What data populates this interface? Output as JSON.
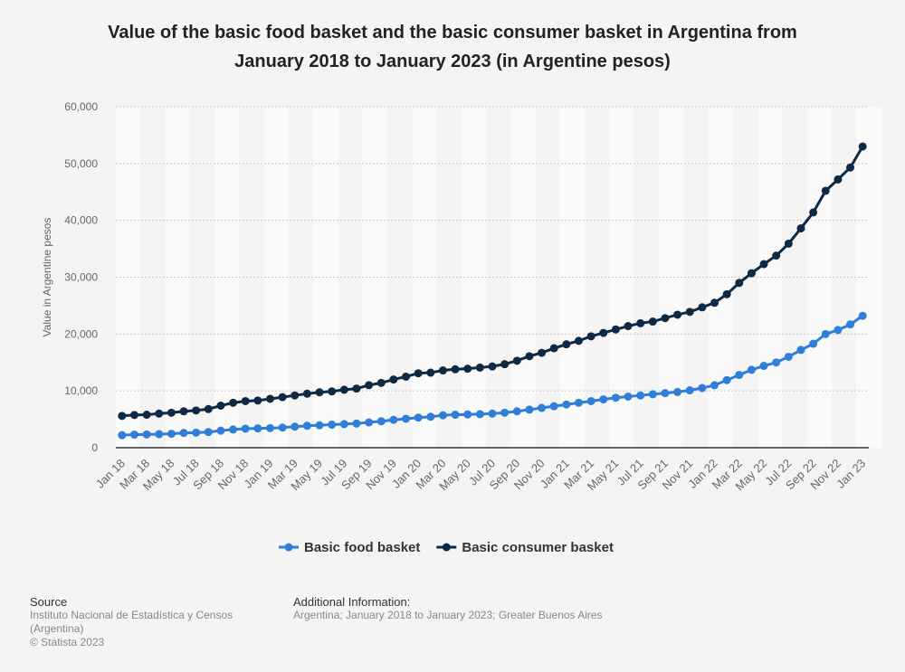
{
  "chart_data": {
    "type": "line",
    "title": "Value of the basic food basket and the basic consumer basket in Argentina from January 2018 to January 2023 (in Argentine pesos)",
    "y_label": "Value in Argentine pesos",
    "categories": [
      "Jan 18",
      null,
      "Mar 18",
      null,
      "May 18",
      null,
      "Jul 18",
      null,
      "Sep 18",
      null,
      "Nov 18",
      null,
      "Jan 19",
      null,
      "Mar 19",
      null,
      "May 19",
      null,
      "Jul 19",
      null,
      "Sep 19",
      null,
      "Nov 19",
      null,
      "Jan 20",
      null,
      "Mar 20",
      null,
      "May 20",
      null,
      "Jul 20",
      null,
      "Sep 20",
      null,
      "Nov 20",
      null,
      "Jan 21",
      null,
      "Mar 21",
      null,
      "May 21",
      null,
      "Jul 21",
      null,
      "Sep 21",
      null,
      "Nov 21",
      null,
      "Jan 22",
      null,
      "Mar 22",
      null,
      "May 22",
      null,
      "Jul 22",
      null,
      "Sep 22",
      null,
      "Nov 22",
      null,
      "Jan 23"
    ],
    "series": [
      {
        "name": "Basic food basket",
        "color": "#2f7ed8",
        "values": [
          2200,
          2300,
          2330,
          2380,
          2450,
          2600,
          2650,
          2750,
          3000,
          3200,
          3350,
          3400,
          3450,
          3550,
          3700,
          3850,
          3950,
          4050,
          4150,
          4250,
          4450,
          4650,
          4900,
          5100,
          5300,
          5450,
          5700,
          5800,
          5850,
          5900,
          6000,
          6150,
          6400,
          6700,
          7000,
          7300,
          7600,
          7900,
          8200,
          8500,
          8800,
          9000,
          9200,
          9400,
          9600,
          9800,
          10100,
          10500,
          11000,
          11900,
          12800,
          13700,
          14400,
          15000,
          16000,
          17200,
          18300,
          20000,
          20700,
          21700,
          23200
        ]
      },
      {
        "name": "Basic consumer basket",
        "color": "#0d2a45",
        "values": [
          5600,
          5750,
          5800,
          6000,
          6150,
          6400,
          6550,
          6800,
          7400,
          7900,
          8200,
          8300,
          8600,
          8900,
          9200,
          9500,
          9750,
          9900,
          10200,
          10400,
          11000,
          11400,
          12000,
          12500,
          13100,
          13200,
          13600,
          13800,
          13900,
          14100,
          14300,
          14700,
          15300,
          16100,
          16700,
          17500,
          18200,
          18800,
          19600,
          20200,
          20800,
          21400,
          21900,
          22200,
          22800,
          23400,
          23900,
          24700,
          25500,
          27000,
          29000,
          30700,
          32300,
          33800,
          35900,
          38600,
          41400,
          45200,
          47200,
          49300,
          53000
        ]
      }
    ],
    "ylim": [
      0,
      60000
    ],
    "yticks": [
      0,
      {
        "value": 10000,
        "label": "10,000"
      },
      {
        "value": 20000,
        "label": "20,000"
      },
      {
        "value": 30000,
        "label": "30,000"
      },
      {
        "value": 40000,
        "label": "40,000"
      },
      {
        "value": 50000,
        "label": "50,000"
      },
      {
        "value": 60000,
        "label": "60,000"
      }
    ],
    "grid": true
  },
  "source": {
    "heading": "Source",
    "lines": [
      "Instituto Nacional de Estadística y Censos (Argentina)",
      "© Statista 2023"
    ]
  },
  "additional_info": {
    "heading": "Additional Information:",
    "text": "Argentina; January 2018 to January 2023; Greater Buenos Aires"
  }
}
